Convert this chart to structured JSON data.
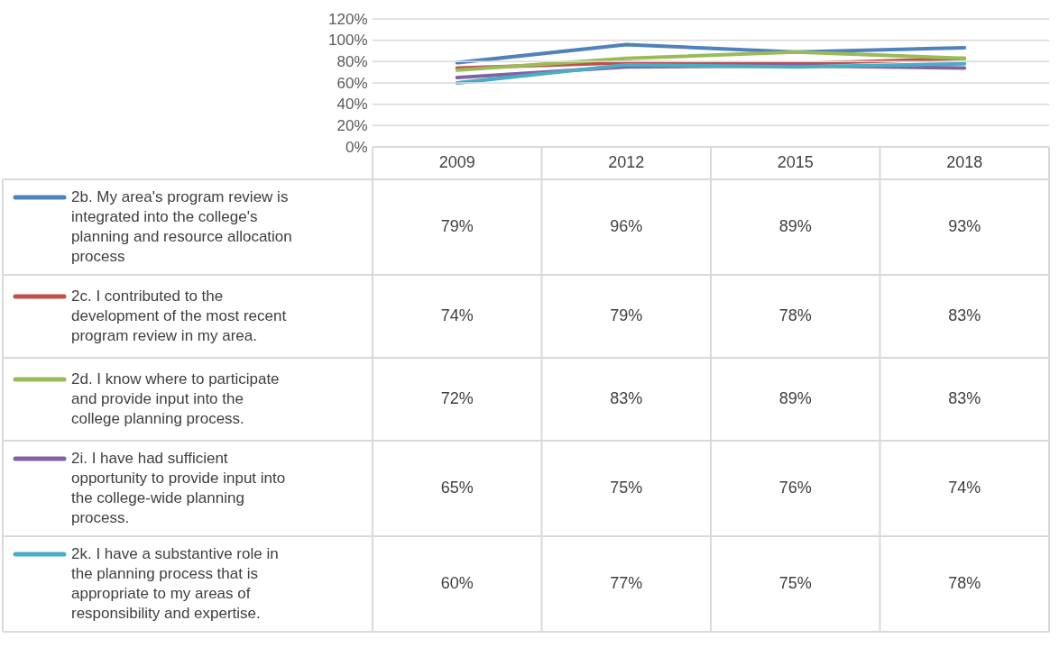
{
  "chart_data": {
    "type": "line",
    "categories": [
      "2009",
      "2012",
      "2015",
      "2018"
    ],
    "ylim": [
      0,
      120
    ],
    "yticks": [
      {
        "value": 0,
        "label": "0%"
      },
      {
        "value": 20,
        "label": "20%"
      },
      {
        "value": 40,
        "label": "40%"
      },
      {
        "value": 60,
        "label": "60%"
      },
      {
        "value": 80,
        "label": "80%"
      },
      {
        "value": 100,
        "label": "100%"
      },
      {
        "value": 120,
        "label": "120%"
      }
    ],
    "grid": "y",
    "legend": "left",
    "series": [
      {
        "name": "2b. My area's program review is integrated into the college's planning and resource allocation process",
        "color": "#4f81bd",
        "values": [
          79,
          96,
          89,
          93
        ],
        "value_labels": [
          "79%",
          "96%",
          "89%",
          "93%"
        ]
      },
      {
        "name": "2c. I contributed to the development of the most recent program review in my area.",
        "color": "#c0504d",
        "values": [
          74,
          79,
          78,
          83
        ],
        "value_labels": [
          "74%",
          "79%",
          "78%",
          "83%"
        ]
      },
      {
        "name": "2d. I know where to participate and provide input into the college planning process.",
        "color": "#9bbb59",
        "values": [
          72,
          83,
          89,
          83
        ],
        "value_labels": [
          "72%",
          "83%",
          "89%",
          "83%"
        ]
      },
      {
        "name": "2i. I have had sufficient opportunity to provide input into the college-wide planning process.",
        "color": "#8064a2",
        "values": [
          65,
          75,
          76,
          74
        ],
        "value_labels": [
          "65%",
          "75%",
          "76%",
          "74%"
        ]
      },
      {
        "name": "2k. I have a substantive role in the planning process that is appropriate to my areas of responsibility and expertise.",
        "color": "#4bacc6",
        "values": [
          60,
          77,
          75,
          78
        ],
        "value_labels": [
          "60%",
          "77%",
          "75%",
          "78%"
        ]
      }
    ]
  }
}
